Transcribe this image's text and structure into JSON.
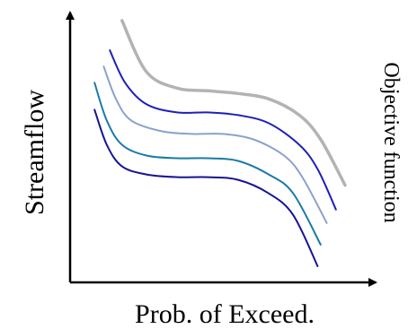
{
  "chart_data": {
    "type": "line",
    "xlabel": "Prob. of Exceed.",
    "ylabel": "Streamflow",
    "right_label": "Objective function",
    "xlim": [
      0,
      1
    ],
    "ylim": [
      0,
      1
    ],
    "grid": false,
    "legend": "none",
    "series": [
      {
        "color": "#b3b3b3",
        "x": [
          0.17,
          0.25,
          0.35,
          0.45,
          0.55,
          0.65,
          0.75,
          0.82,
          0.9
        ],
        "y": [
          0.97,
          0.78,
          0.72,
          0.71,
          0.7,
          0.68,
          0.62,
          0.53,
          0.36
        ]
      },
      {
        "color": "#1f1fb8",
        "x": [
          0.13,
          0.18,
          0.25,
          0.35,
          0.45,
          0.55,
          0.65,
          0.75,
          0.81,
          0.87
        ],
        "y": [
          0.86,
          0.74,
          0.66,
          0.63,
          0.63,
          0.62,
          0.59,
          0.51,
          0.42,
          0.27
        ]
      },
      {
        "color": "#8aa2cc",
        "x": [
          0.11,
          0.15,
          0.2,
          0.3,
          0.4,
          0.5,
          0.6,
          0.7,
          0.76,
          0.84
        ],
        "y": [
          0.8,
          0.68,
          0.6,
          0.56,
          0.55,
          0.55,
          0.53,
          0.47,
          0.39,
          0.22
        ]
      },
      {
        "color": "#1a7aa8",
        "x": [
          0.08,
          0.12,
          0.17,
          0.25,
          0.35,
          0.45,
          0.55,
          0.65,
          0.73,
          0.82
        ],
        "y": [
          0.74,
          0.6,
          0.51,
          0.47,
          0.46,
          0.46,
          0.45,
          0.4,
          0.33,
          0.14
        ]
      },
      {
        "color": "#151590",
        "x": [
          0.08,
          0.12,
          0.17,
          0.25,
          0.35,
          0.45,
          0.55,
          0.65,
          0.73,
          0.81
        ],
        "y": [
          0.64,
          0.51,
          0.43,
          0.4,
          0.39,
          0.39,
          0.38,
          0.33,
          0.25,
          0.06
        ]
      }
    ]
  }
}
